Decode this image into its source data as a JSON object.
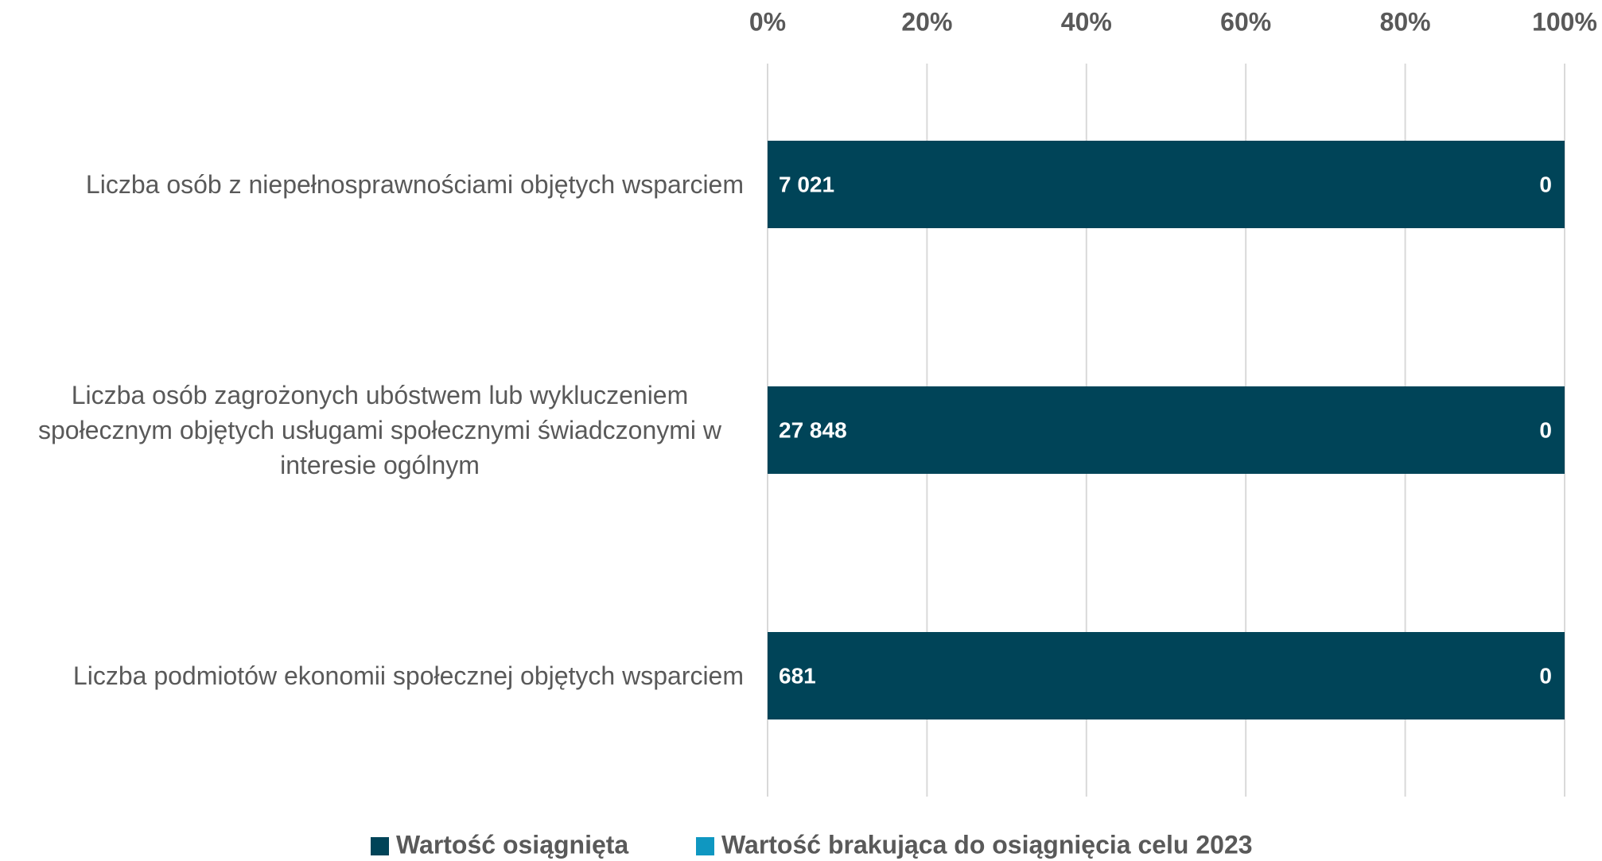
{
  "chart_data": {
    "type": "bar",
    "orientation": "horizontal",
    "stacked": "percent",
    "categories": [
      "Liczba osób z niepełnosprawnościami objętych wsparciem",
      "Liczba osób zagrożonych ubóstwem lub wykluczeniem społecznym objętych usługami społecznymi świadczonymi w interesie ogólnym",
      "Liczba podmiotów ekonomii społecznej objętych wsparciem"
    ],
    "series": [
      {
        "name": "Wartość osiągnięta",
        "color": "#004458",
        "values": [
          7021,
          27848,
          681
        ],
        "value_labels": [
          "7 021",
          "27 848",
          "681"
        ]
      },
      {
        "name": "Wartość brakująca do osiągnięcia celu 2023",
        "color": "#0f97c1",
        "values": [
          0,
          0,
          0
        ]
      }
    ],
    "xlim": [
      0,
      100
    ],
    "xticks": [
      {
        "value": 0,
        "label": "0%"
      },
      {
        "value": 20,
        "label": "20%"
      },
      {
        "value": 40,
        "label": "40%"
      },
      {
        "value": 60,
        "label": "60%"
      },
      {
        "value": 80,
        "label": "80%"
      },
      {
        "value": 100,
        "label": "100%"
      }
    ],
    "grid": true,
    "legend": "bottom"
  }
}
